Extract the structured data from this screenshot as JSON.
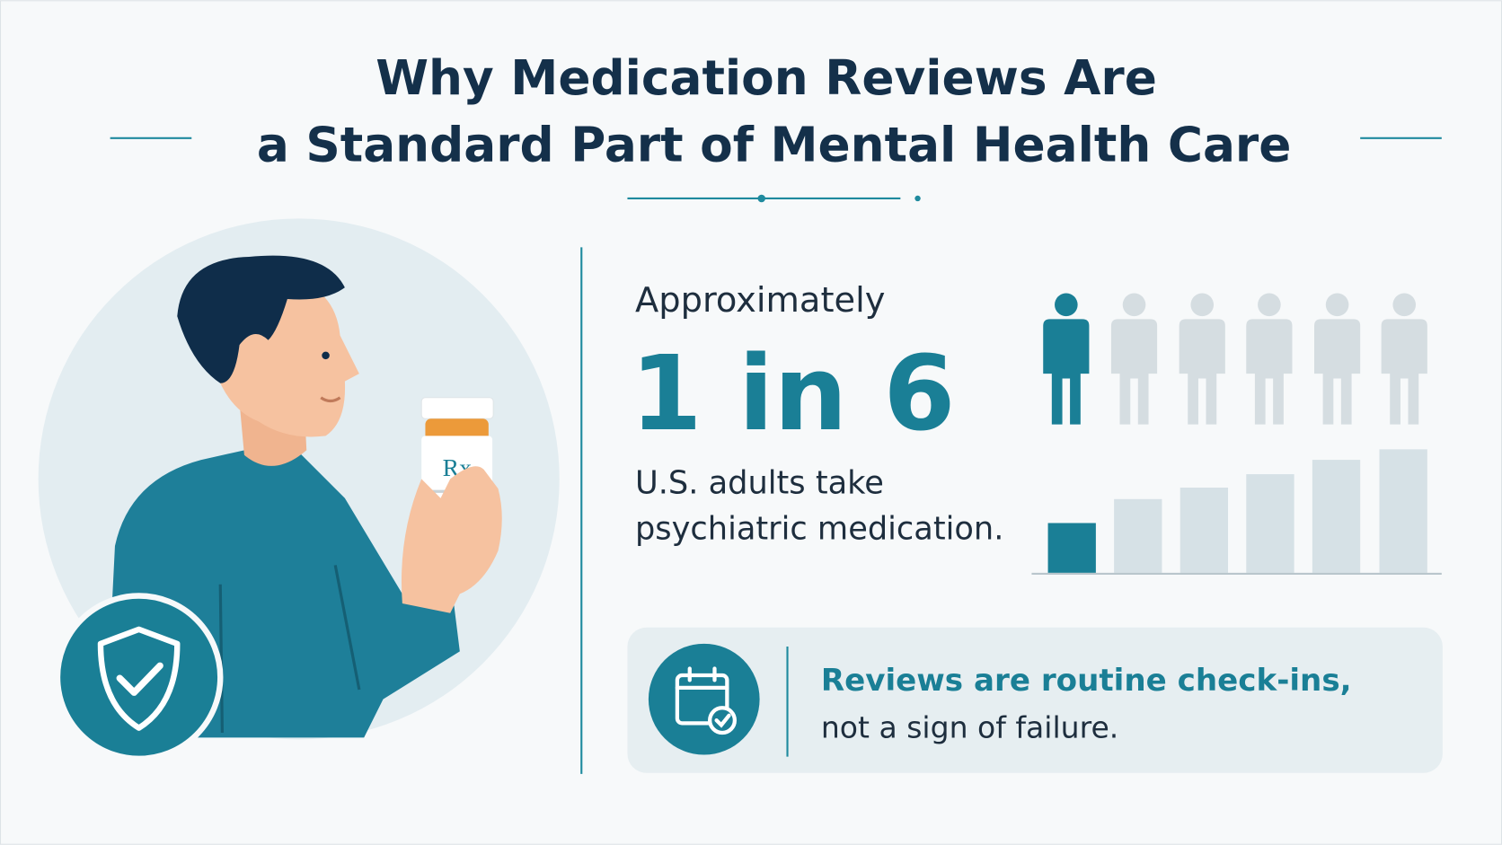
{
  "header": {
    "title_lines": [
      "Why Medication Reviews Are",
      "a Standard Part of Mental Health Care"
    ]
  },
  "illustration": {
    "label": "Rx"
  },
  "stat": {
    "intro": "Approximately",
    "figure": "1 in 6",
    "description_lines": [
      "U.S. adults take",
      "psychiatric medication."
    ]
  },
  "callout": {
    "headline": "Reviews are routine check-ins,",
    "text": "not a sign of failure."
  }
}
